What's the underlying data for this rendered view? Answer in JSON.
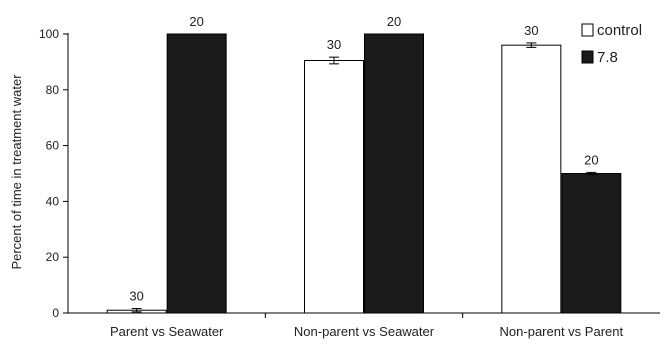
{
  "chart_data": {
    "type": "bar",
    "ylabel": "Percent of time in treatment water",
    "ylim": [
      0,
      100
    ],
    "yticks": [
      0,
      20,
      40,
      60,
      80,
      100
    ],
    "categories": [
      "Parent vs Seawater",
      "Non-parent vs Seawater",
      "Non-parent vs Parent"
    ],
    "series": [
      {
        "name": "control",
        "values": [
          1,
          90.5,
          96
        ],
        "errors": [
          0.6,
          1.2,
          0.8
        ],
        "n_labels": [
          "30",
          "30",
          "30"
        ],
        "fill": "#ffffff",
        "stroke": "#000000"
      },
      {
        "name": "7.8",
        "values": [
          100,
          100,
          50
        ],
        "errors": [
          0,
          0,
          0.4
        ],
        "n_labels": [
          "20",
          "20",
          "20"
        ],
        "fill": "#1a1a1a",
        "stroke": "#000000"
      }
    ],
    "legend_position": "top-right"
  }
}
